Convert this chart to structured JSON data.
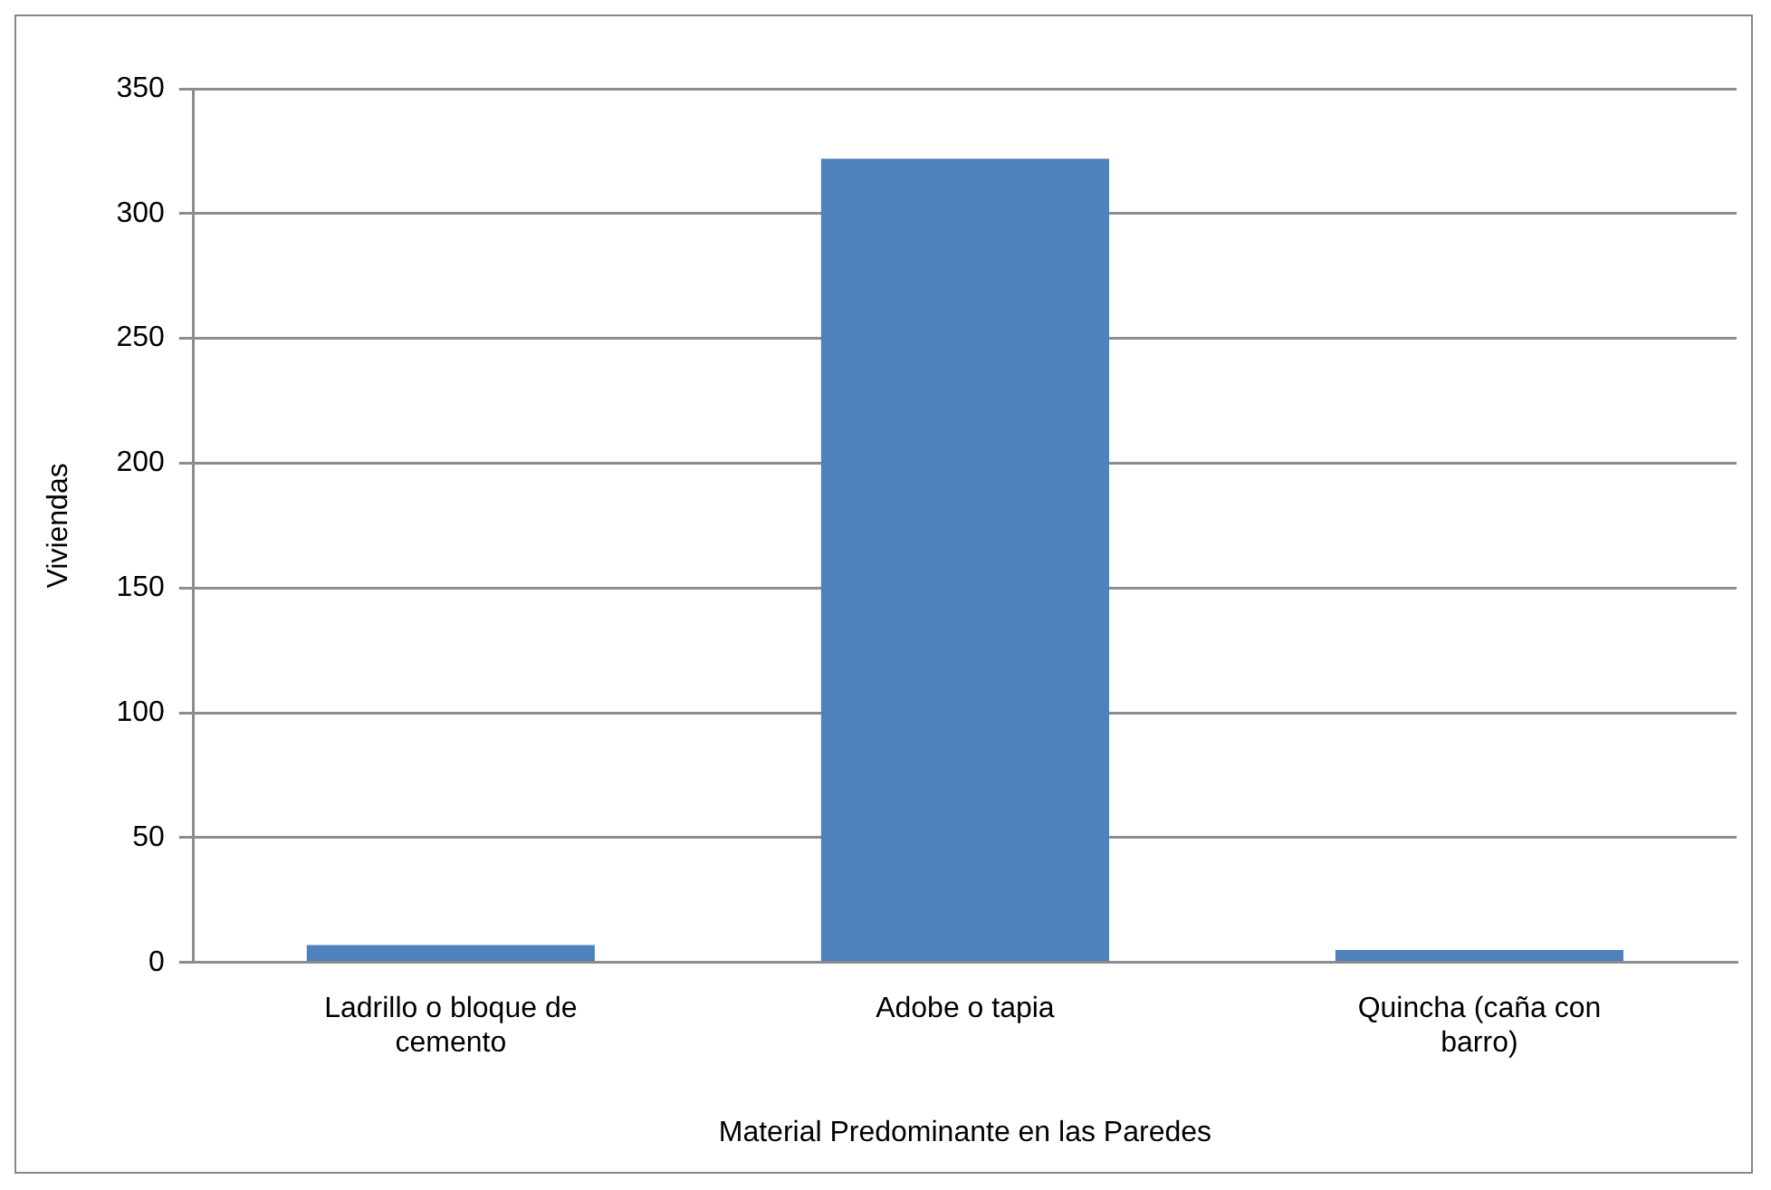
{
  "chart_data": {
    "type": "bar",
    "xlabel": "Material Predominante en las Paredes",
    "ylabel": "Viviendas",
    "categories": [
      "Ladrillo o bloque de cemento",
      "Adobe o tapia",
      "Quincha (caña con barro)"
    ],
    "values": [
      7,
      322,
      5
    ],
    "color": "#4f81bd",
    "ylim": [
      0,
      350
    ],
    "yticks": [
      0,
      50,
      100,
      150,
      200,
      250,
      300,
      350
    ],
    "grid": "y",
    "legend": false
  }
}
